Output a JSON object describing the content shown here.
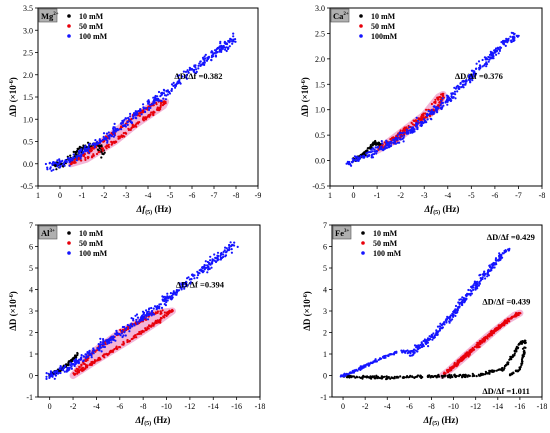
{
  "colors": {
    "series_10mM": "#000000",
    "series_50mM": "#e8000b",
    "series_100mM": "#1515ff",
    "hull": "#f3b5d6",
    "ion_box": "#b0b0b0"
  },
  "chart_data": [
    {
      "type": "scatter",
      "ion_label": "Mg",
      "ion_charge": "2+",
      "xlabel": "Δf",
      "xlabel_sub": "(5)",
      "xlabel_unit": "(Hz)",
      "ylabel": "ΔD (×10",
      "ylabel_exp": "-6",
      "ylabel_close": ")",
      "xlim": [
        1,
        -9
      ],
      "ylim": [
        -0.5,
        3.5
      ],
      "xticks": [
        1,
        0,
        -1,
        -2,
        -3,
        -4,
        -5,
        -6,
        -7,
        -8,
        -9
      ],
      "yticks": [
        -0.5,
        0.0,
        0.5,
        1.0,
        1.5,
        2.0,
        2.5,
        3.0,
        3.5
      ],
      "ytick_labels": [
        "-0.5",
        "0.0",
        "0.5",
        "1.0",
        "1.5",
        "2.0",
        "2.5",
        "3.0",
        "3.5"
      ],
      "legend": [
        "10 mM",
        "50 mM",
        "100 mM"
      ],
      "annotations": [
        {
          "text": "ΔD/Δf =0.382",
          "at_x": -5.2,
          "at_y": 1.9
        }
      ],
      "series": [
        {
          "name": "10 mM",
          "shape": "band",
          "path": [
            [
              0.2,
              -0.05
            ],
            [
              -0.5,
              0.1
            ],
            [
              -1.0,
              0.35
            ],
            [
              -1.7,
              0.45
            ],
            [
              -2.0,
              0.2
            ]
          ],
          "width": 0.1,
          "count": 140
        },
        {
          "name": "50 mM",
          "shape": "loop",
          "path": [
            [
              -0.5,
              0.0
            ],
            [
              -1.2,
              0.1
            ],
            [
              -2.5,
              0.5
            ],
            [
              -3.5,
              0.9
            ],
            [
              -4.7,
              1.3
            ],
            [
              -4.8,
              1.4
            ],
            [
              -4.3,
              1.35
            ],
            [
              -3.2,
              1.0
            ],
            [
              -2.2,
              0.6
            ],
            [
              -1.2,
              0.25
            ],
            [
              -0.5,
              0.0
            ]
          ],
          "width": 0.06,
          "count": 260,
          "hull": true
        },
        {
          "name": "100 mM",
          "shape": "band",
          "path": [
            [
              0.6,
              -0.1
            ],
            [
              -0.5,
              0.1
            ],
            [
              -2.0,
              0.55
            ],
            [
              -4.0,
              1.3
            ],
            [
              -6.0,
              2.1
            ],
            [
              -7.5,
              2.65
            ],
            [
              -7.9,
              2.8
            ]
          ],
          "width": 0.16,
          "count": 420
        }
      ]
    },
    {
      "type": "scatter",
      "ion_label": "Ca",
      "ion_charge": "2+",
      "xlabel": "Δf",
      "xlabel_sub": "(5)",
      "xlabel_unit": "(Hz)",
      "ylabel": "ΔD (×10",
      "ylabel_exp": "-6",
      "ylabel_close": ")",
      "xlim": [
        1,
        -8
      ],
      "ylim": [
        -0.5,
        3.0
      ],
      "xticks": [
        1,
        0,
        -1,
        -2,
        -3,
        -4,
        -5,
        -6,
        -7,
        -8
      ],
      "yticks": [
        -0.5,
        0.0,
        0.5,
        1.0,
        1.5,
        2.0,
        2.5,
        3.0
      ],
      "ytick_labels": [
        "-0.5",
        "0.0",
        "0.5",
        "1.0",
        "1.5",
        "2.0",
        "2.5",
        "3.0"
      ],
      "legend": [
        "10 mM",
        "50 mM",
        "100mM"
      ],
      "annotations": [
        {
          "text": "ΔD/Δf =0.376",
          "at_x": -4.3,
          "at_y": 1.6
        }
      ],
      "series": [
        {
          "name": "10 mM",
          "shape": "band",
          "path": [
            [
              0.0,
              0.0
            ],
            [
              -0.5,
              0.15
            ],
            [
              -0.9,
              0.35
            ],
            [
              -1.2,
              0.3
            ]
          ],
          "width": 0.06,
          "count": 110
        },
        {
          "name": "50 mM",
          "shape": "loop",
          "path": [
            [
              -1.0,
              0.2
            ],
            [
              -2.0,
              0.55
            ],
            [
              -3.0,
              0.9
            ],
            [
              -3.6,
              1.25
            ],
            [
              -3.8,
              1.3
            ],
            [
              -3.6,
              1.05
            ],
            [
              -2.8,
              0.75
            ],
            [
              -1.8,
              0.4
            ],
            [
              -1.0,
              0.2
            ]
          ],
          "width": 0.06,
          "count": 220,
          "hull": true
        },
        {
          "name": "100mM",
          "shape": "band",
          "path": [
            [
              0.2,
              -0.05
            ],
            [
              -1.0,
              0.2
            ],
            [
              -2.5,
              0.6
            ],
            [
              -4.0,
              1.2
            ],
            [
              -5.5,
              1.9
            ],
            [
              -6.5,
              2.35
            ],
            [
              -7.0,
              2.45
            ]
          ],
          "width": 0.13,
          "count": 420
        }
      ]
    },
    {
      "type": "scatter",
      "ion_label": "Al",
      "ion_charge": "3+",
      "xlabel": "Δf",
      "xlabel_sub": "(5)",
      "xlabel_unit": "(Hz)",
      "ylabel": "ΔD (×10",
      "ylabel_exp": "-6",
      "ylabel_close": ")",
      "xlim": [
        1,
        -18
      ],
      "ylim": [
        -1,
        7
      ],
      "xticks": [
        0,
        -2,
        -4,
        -6,
        -8,
        -10,
        -12,
        -14,
        -16,
        -18
      ],
      "yticks": [
        -1,
        0,
        1,
        2,
        3,
        4,
        5,
        6,
        7
      ],
      "ytick_labels": [
        "-1",
        "0",
        "1",
        "2",
        "3",
        "4",
        "5",
        "6",
        "7"
      ],
      "legend": [
        "10 mM",
        "50 mM",
        "100 mM"
      ],
      "annotations": [
        {
          "text": "ΔD/Δf =0.394",
          "at_x": -10.8,
          "at_y": 4.1
        }
      ],
      "series": [
        {
          "name": "10 mM",
          "shape": "band",
          "path": [
            [
              0.0,
              0.0
            ],
            [
              -1.0,
              0.3
            ],
            [
              -2.0,
              0.75
            ],
            [
              -2.4,
              1.0
            ]
          ],
          "width": 0.1,
          "count": 110
        },
        {
          "name": "50 mM",
          "shape": "loop",
          "path": [
            [
              -2.0,
              0.0
            ],
            [
              -4.0,
              0.7
            ],
            [
              -7.0,
              1.7
            ],
            [
              -9.5,
              2.6
            ],
            [
              -10.5,
              3.0
            ],
            [
              -9.0,
              2.9
            ],
            [
              -6.0,
              2.0
            ],
            [
              -3.5,
              1.0
            ],
            [
              -2.0,
              0.0
            ]
          ],
          "width": 0.12,
          "count": 320,
          "hull": true
        },
        {
          "name": "100 mM",
          "shape": "band",
          "path": [
            [
              0.2,
              -0.1
            ],
            [
              -2.0,
              0.5
            ],
            [
              -5.0,
              1.6
            ],
            [
              -9.0,
              3.1
            ],
            [
              -13.0,
              4.9
            ],
            [
              -15.5,
              6.0
            ],
            [
              -16.0,
              6.1
            ]
          ],
          "width": 0.3,
          "count": 440
        }
      ]
    },
    {
      "type": "scatter",
      "ion_label": "Fe",
      "ion_charge": "3+",
      "xlabel": "Δf",
      "xlabel_sub": "(5)",
      "xlabel_unit": "(Hz)",
      "ylabel": "ΔD (×10",
      "ylabel_exp": "-6",
      "ylabel_close": ")",
      "xlim": [
        1,
        -18
      ],
      "ylim": [
        -1,
        7
      ],
      "xticks": [
        0,
        -2,
        -4,
        -6,
        -8,
        -10,
        -12,
        -14,
        -16,
        -18
      ],
      "yticks": [
        -1,
        0,
        1,
        2,
        3,
        4,
        5,
        6,
        7
      ],
      "ytick_labels": [
        "-1",
        "0",
        "1",
        "2",
        "3",
        "4",
        "5",
        "6",
        "7"
      ],
      "legend": [
        "10 mM",
        "50 mM",
        "100 mM"
      ],
      "annotations": [
        {
          "text": "ΔD/Δf =0.429",
          "at_x": -13.0,
          "at_y": 6.3
        },
        {
          "text": "ΔD/Δf =0.439",
          "at_x": -12.6,
          "at_y": 3.3
        },
        {
          "text": "ΔD/Δf =1.011",
          "at_x": -12.6,
          "at_y": -0.85
        }
      ],
      "series": [
        {
          "name": "10 mM",
          "shape": "band",
          "path": [
            [
              0.0,
              -0.05
            ],
            [
              -4.0,
              -0.1
            ],
            [
              -8.0,
              -0.05
            ],
            [
              -12.0,
              0.0
            ],
            [
              -14.5,
              0.3
            ],
            [
              -15.5,
              1.0
            ],
            [
              -16.0,
              1.5
            ],
            [
              -16.5,
              1.6
            ],
            [
              -16.3,
              0.9
            ],
            [
              -16.0,
              0.3
            ],
            [
              -15.0,
              0.0
            ]
          ],
          "width": 0.1,
          "count": 330
        },
        {
          "name": "50 mM",
          "shape": "loop",
          "path": [
            [
              -9.0,
              0.0
            ],
            [
              -10.0,
              0.4
            ],
            [
              -12.0,
              1.3
            ],
            [
              -14.0,
              2.2
            ],
            [
              -15.5,
              2.8
            ],
            [
              -16.0,
              2.9
            ],
            [
              -15.0,
              2.6
            ],
            [
              -13.0,
              1.8
            ],
            [
              -11.0,
              0.9
            ],
            [
              -9.5,
              0.2
            ]
          ],
          "width": 0.12,
          "count": 340,
          "hull": true
        },
        {
          "name": "100 mM",
          "shape": "band",
          "path": [
            [
              0.2,
              -0.05
            ],
            [
              -1.5,
              0.3
            ],
            [
              -3.0,
              0.7
            ],
            [
              -5.0,
              1.1
            ],
            [
              -6.0,
              1.1
            ]
          ],
          "width": 0.1,
          "count": 120
        },
        {
          "name": "100 mM",
          "shape": "band",
          "path": [
            [
              -6.0,
              1.0
            ],
            [
              -8.0,
              1.7
            ],
            [
              -10.0,
              2.9
            ],
            [
              -12.0,
              4.2
            ],
            [
              -14.0,
              5.4
            ],
            [
              -15.0,
              5.9
            ]
          ],
          "width": 0.25,
          "count": 300
        }
      ]
    }
  ]
}
